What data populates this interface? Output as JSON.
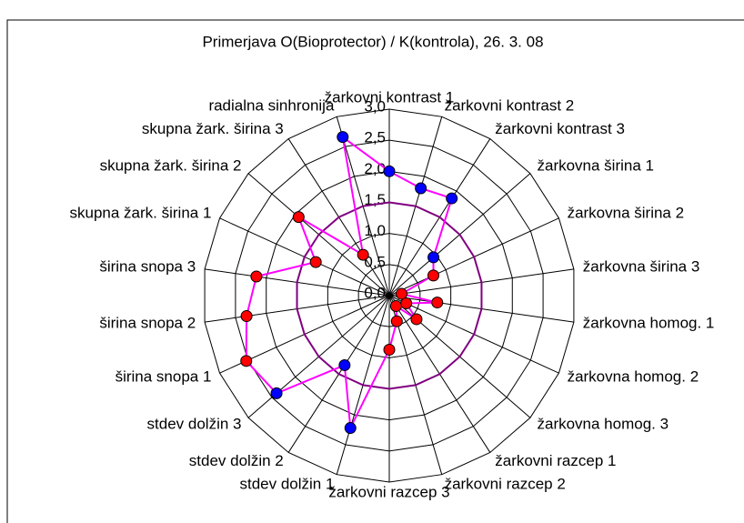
{
  "chart_data": {
    "type": "radar",
    "title": "Primerjava O(Bioprotector) / K(kontrola), 26. 3. 08",
    "categories": [
      "žarkovni kontrast 1",
      "žarkovni kontrast 2",
      "žarkovni kontrast 3",
      "žarkovna širina 1",
      "žarkovna širina 2",
      "žarkovna širina 3",
      "žarkovna homog. 1",
      "žarkovna homog. 2",
      "žarkovna homog. 3",
      "žarkovni razcep 1",
      "žarkovni razcep 2",
      "žarkovni razcep 3",
      "stdev dolžin 1",
      "stdev dolžin 2",
      "stdev dolžin 3",
      "širina snopa 1",
      "širina snopa 2",
      "širina snopa 3",
      "skupna žark. širina 1",
      "skupna žark. širina 2",
      "skupna žark. širina 3",
      "radialna sinhronija"
    ],
    "series": [
      {
        "color": "#ff00ff",
        "values": [
          2.0,
          1.8,
          1.86,
          0.94,
          0.78,
          0.2,
          0.78,
          0.3,
          0.58,
          0.2,
          0.43,
          0.87,
          2.22,
          1.33,
          2.4,
          2.53,
          2.32,
          2.16,
          1.3,
          1.93,
          0.78,
          2.66
        ],
        "marker_colors": [
          "#0000ff",
          "#0000ff",
          "#0000ff",
          "#0000ff",
          "#ff0000",
          "#ff0000",
          "#ff0000",
          "#ff0000",
          "#ff0000",
          "#ff0000",
          "#ff0000",
          "#ff0000",
          "#0000ff",
          "#0000ff",
          "#0000ff",
          "#ff0000",
          "#ff0000",
          "#ff0000",
          "#ff0000",
          "#ff0000",
          "#ff0000",
          "#0000ff"
        ]
      },
      {
        "color": "#800080",
        "values": [
          1.5,
          1.5,
          1.5,
          1.5,
          1.5,
          1.5,
          1.5,
          1.5,
          1.5,
          1.5,
          1.5,
          1.5,
          1.5,
          1.5,
          1.5,
          1.5,
          1.5,
          1.5,
          1.5,
          1.5,
          1.5,
          1.5
        ]
      }
    ],
    "ylim": [
      0,
      3
    ],
    "yticks": [
      {
        "value": 0,
        "label": "0,0"
      },
      {
        "value": 0.5,
        "label": "0,5"
      },
      {
        "value": 1,
        "label": "1,0"
      },
      {
        "value": 1.5,
        "label": "1,5"
      },
      {
        "value": 2,
        "label": "2,0"
      },
      {
        "value": 2.5,
        "label": "2,5"
      },
      {
        "value": 3,
        "label": "3,0"
      }
    ],
    "grid": true
  }
}
